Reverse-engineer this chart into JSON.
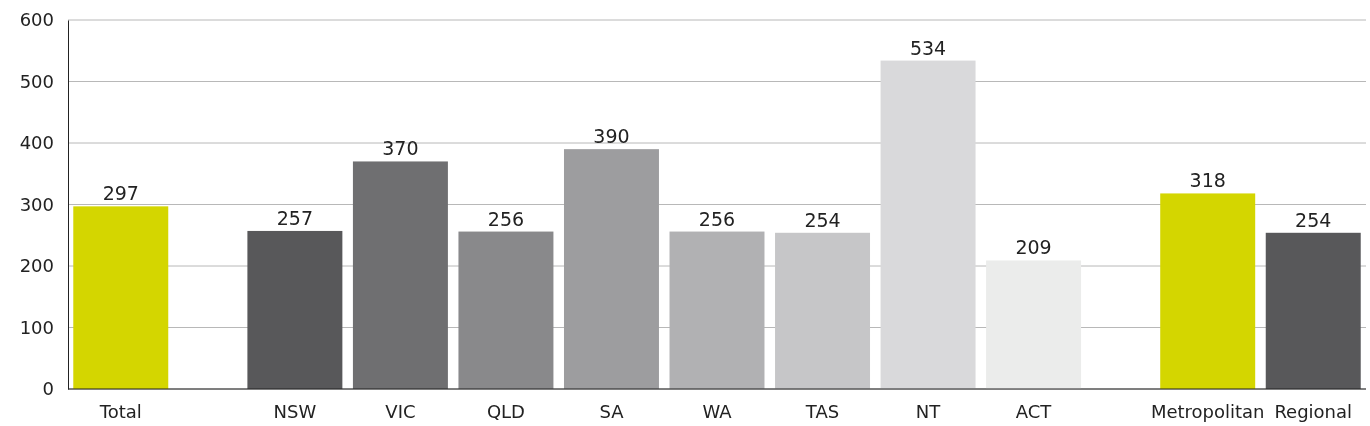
{
  "chart_data": {
    "type": "bar",
    "categories": [
      "Total",
      null,
      "NSW",
      "VIC",
      "QLD",
      "SA",
      "WA",
      "TAS",
      "NT",
      "ACT",
      null,
      "Metropolitan",
      "Regional"
    ],
    "values": [
      297,
      null,
      257,
      370,
      256,
      390,
      256,
      254,
      534,
      209,
      null,
      318,
      254
    ],
    "colors": [
      "#d4d600",
      null,
      "#58585a",
      "#6f6f71",
      "#89898b",
      "#9d9d9f",
      "#b1b1b3",
      "#c6c6c8",
      "#d9d9db",
      "#ebeceb",
      null,
      "#d4d600",
      "#58585a"
    ],
    "ylim": [
      0,
      600
    ],
    "yticks": [
      0,
      100,
      200,
      300,
      400,
      500,
      600
    ],
    "grid": "y",
    "data_labels": true
  }
}
